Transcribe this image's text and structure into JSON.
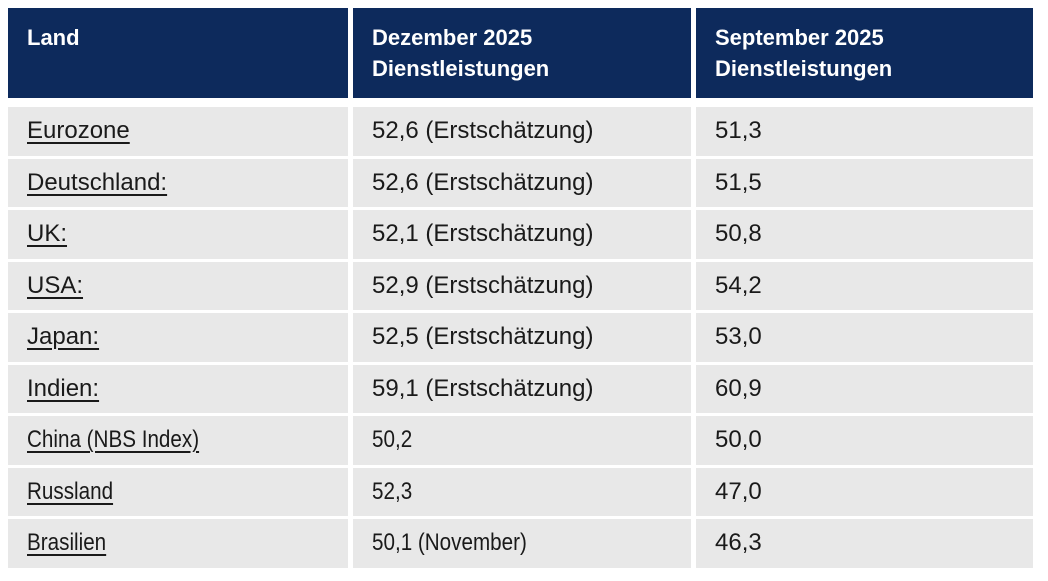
{
  "colors": {
    "page_bg": "#ffffff",
    "header_bg": "#0d2a5c",
    "header_text": "#ffffff",
    "row_bg": "#e8e8e8",
    "row_text": "#1a1a1a"
  },
  "table": {
    "columns": [
      {
        "id": "land",
        "label": "Land"
      },
      {
        "id": "december",
        "label": "Dezember 2025\nDienstleistungen"
      },
      {
        "id": "september",
        "label": "September 2025\nDienstleistungen"
      }
    ],
    "rows": [
      {
        "country": "Eurozone",
        "december": "52,6 (Erstschätzung)",
        "september": "51,3"
      },
      {
        "country": "Deutschland:",
        "december": "52,6 (Erstschätzung)",
        "september": "51,5"
      },
      {
        "country": "UK:",
        "december": "52,1 (Erstschätzung)",
        "september": "50,8"
      },
      {
        "country": "USA:",
        "december": "52,9 (Erstschätzung)",
        "september": "54,2"
      },
      {
        "country": "Japan:",
        "december": "52,5 (Erstschätzung)",
        "september": "53,0"
      },
      {
        "country": "Indien:",
        "december": "59,1 (Erstschätzung)",
        "september": "60,9"
      },
      {
        "country": "China (NBS Index)",
        "december": "50,2",
        "september": "50,0"
      },
      {
        "country": "Russland",
        "december": "52,3",
        "september": "47,0"
      },
      {
        "country": "Brasilien",
        "december": "50,1 (November)",
        "september": "46,3"
      }
    ]
  },
  "chart_data": {
    "type": "table",
    "columns": [
      "Land",
      "Dezember 2025 Dienstleistungen",
      "September 2025 Dienstleistungen"
    ],
    "categories": [
      "Eurozone",
      "Deutschland",
      "UK",
      "USA",
      "Japan",
      "Indien",
      "China (NBS Index)",
      "Russland",
      "Brasilien"
    ],
    "series": [
      {
        "name": "Dezember 2025 Dienstleistungen",
        "values": [
          52.6,
          52.6,
          52.1,
          52.9,
          52.5,
          59.1,
          50.2,
          52.3,
          50.1
        ],
        "notes": [
          "Erstschätzung",
          "Erstschätzung",
          "Erstschätzung",
          "Erstschätzung",
          "Erstschätzung",
          "Erstschätzung",
          "",
          "",
          "November"
        ]
      },
      {
        "name": "September 2025 Dienstleistungen",
        "values": [
          51.3,
          51.5,
          50.8,
          54.2,
          53.0,
          60.9,
          50.0,
          47.0,
          46.3
        ]
      }
    ],
    "layout": {
      "header_position": "top",
      "grid": "white-gutters",
      "decimal_separator": "comma"
    }
  }
}
